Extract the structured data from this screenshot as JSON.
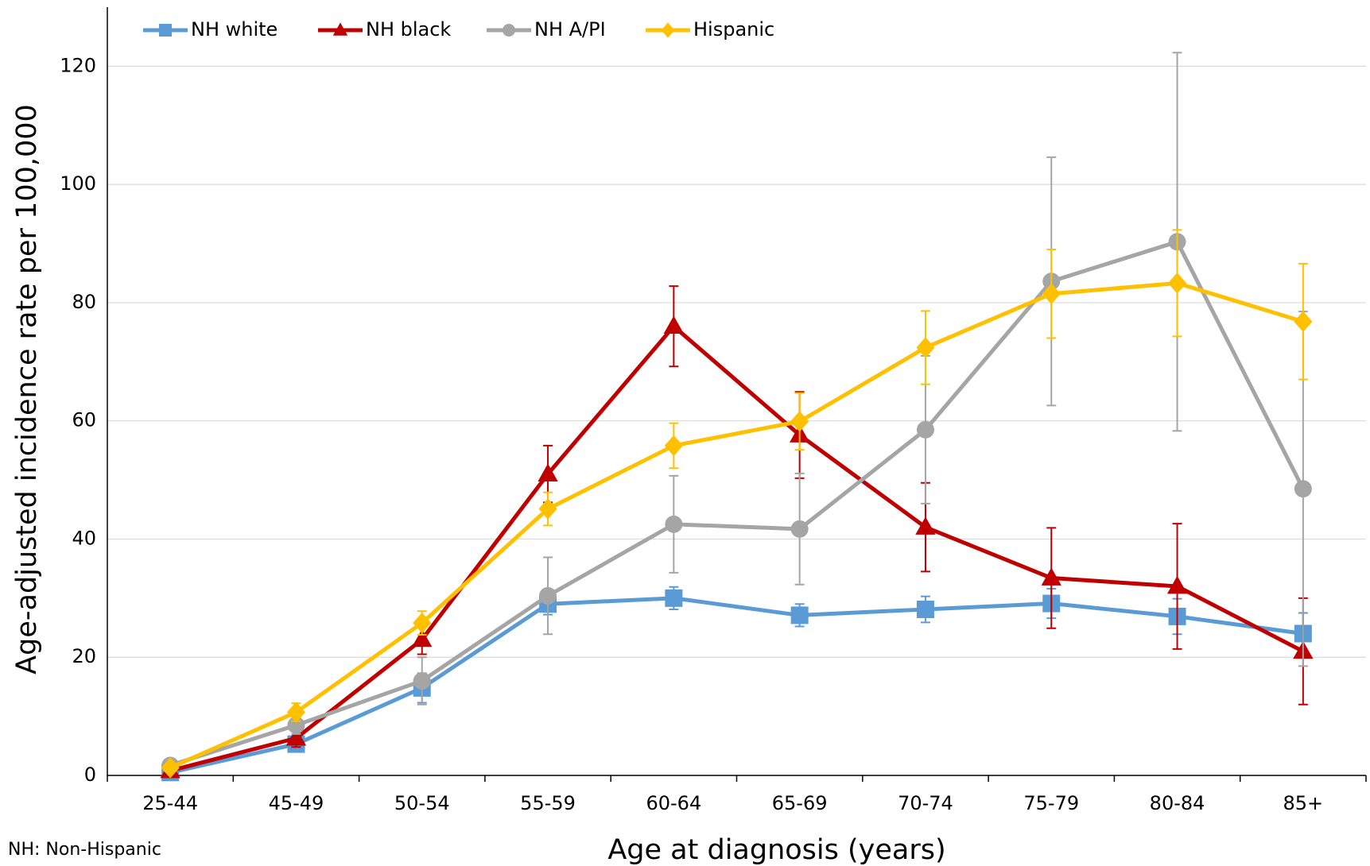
{
  "chart_data": {
    "type": "line",
    "x_label": "Age at diagnosis (years)",
    "y_label": "Age-adjusted incidence rate per 100,000",
    "note": "NH: Non-Hispanic",
    "categories": [
      "25-44",
      "45-49",
      "50-54",
      "55-59",
      "60-64",
      "65-69",
      "70-74",
      "75-79",
      "80-84",
      "85+"
    ],
    "ylim": [
      0,
      130
    ],
    "yticks": [
      0,
      20,
      40,
      60,
      80,
      100,
      120
    ],
    "grid": true,
    "legend": "top-left",
    "series": [
      {
        "name": "NH white",
        "color": "#5b9bd5",
        "marker": "square",
        "values": [
          0.5,
          5.3,
          14.8,
          29,
          30,
          27.1,
          28.1,
          29.1,
          26.9,
          24
        ],
        "errors": [
          0.3,
          0.8,
          2.5,
          1.8,
          1.9,
          1.9,
          2.2,
          2.5,
          3,
          3.5
        ]
      },
      {
        "name": "NH black",
        "color": "#c00000",
        "marker": "triangle",
        "values": [
          0.8,
          6.3,
          23,
          51,
          76,
          57.6,
          42,
          33.4,
          32,
          21
        ],
        "errors": [
          0.5,
          1.5,
          2.5,
          4.8,
          6.8,
          7.3,
          7.5,
          8.5,
          10.6,
          9
        ]
      },
      {
        "name": "NH A/PI",
        "color": "#a5a5a5",
        "marker": "circle",
        "values": [
          1.7,
          8.5,
          16,
          30.4,
          42.5,
          41.7,
          58.5,
          83.6,
          90.3,
          48.5
        ],
        "errors": [
          0.5,
          1.5,
          4,
          6.5,
          8.2,
          9.4,
          12.5,
          21,
          32,
          30
        ]
      },
      {
        "name": "Hispanic",
        "color": "#ffc000",
        "marker": "diamond",
        "values": [
          1.3,
          10.7,
          25.8,
          45.1,
          55.8,
          59.9,
          72.4,
          81.5,
          83.3,
          76.8
        ],
        "errors": [
          0.5,
          1.5,
          2,
          2.8,
          3.8,
          4.8,
          6.2,
          7.5,
          9,
          9.8
        ]
      }
    ]
  }
}
